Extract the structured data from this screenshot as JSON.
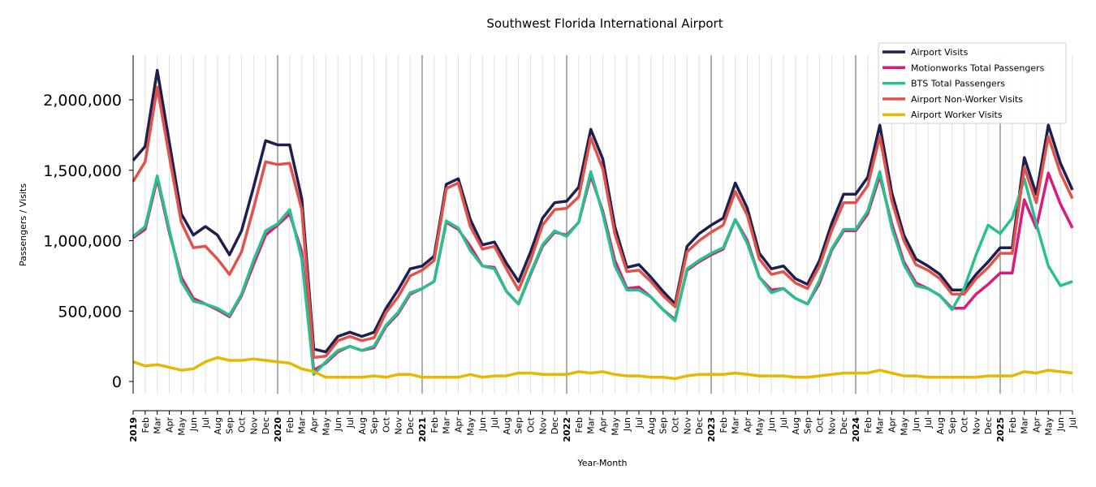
{
  "chart_data": {
    "type": "line",
    "title": "Southwest Florida International Airport",
    "xlabel": "Year-Month",
    "ylabel": "Passengers / Visits",
    "ylim": [
      -80000,
      2320000
    ],
    "y_ticks": [
      0,
      500000,
      1000000,
      1500000,
      2000000
    ],
    "y_tick_labels": [
      "0",
      "500,000",
      "1,000,000",
      "1,500,000",
      "2,000,000"
    ],
    "grid": "vertical monthly lines, darker at each January",
    "legend_position": "top-right",
    "x_tick_labels": [
      "2019",
      "Feb",
      "Mar",
      "Apr",
      "May",
      "Jun",
      "Jul",
      "Aug",
      "Sep",
      "Oct",
      "Nov",
      "Dec",
      "2020",
      "Feb",
      "Mar",
      "Apr",
      "May",
      "Jun",
      "Jul",
      "Aug",
      "Sep",
      "Oct",
      "Nov",
      "Dec",
      "2021",
      "Feb",
      "Mar",
      "Apr",
      "May",
      "Jun",
      "Jul",
      "Aug",
      "Sep",
      "Oct",
      "Nov",
      "Dec",
      "2022",
      "Feb",
      "Mar",
      "Apr",
      "May",
      "Jun",
      "Jul",
      "Aug",
      "Sep",
      "Oct",
      "Nov",
      "Dec",
      "2023",
      "Feb",
      "Mar",
      "Apr",
      "May",
      "Jun",
      "Jul",
      "Aug",
      "Sep",
      "Oct",
      "Nov",
      "Dec",
      "2024",
      "Feb",
      "Mar",
      "Apr",
      "May",
      "Jun",
      "Jul",
      "Aug",
      "Sep",
      "Oct",
      "Nov",
      "Dec",
      "2025",
      "Feb",
      "Mar",
      "Apr",
      "May",
      "Jun",
      "Jul"
    ],
    "series": [
      {
        "name": "Airport Visits",
        "color": "#1f1f4f",
        "values": [
          1570000,
          1670000,
          2210000,
          1700000,
          1190000,
          1040000,
          1100000,
          1040000,
          900000,
          1070000,
          1380000,
          1710000,
          1680000,
          1680000,
          1300000,
          230000,
          210000,
          320000,
          350000,
          320000,
          350000,
          520000,
          650000,
          800000,
          820000,
          890000,
          1400000,
          1440000,
          1150000,
          970000,
          990000,
          840000,
          710000,
          920000,
          1160000,
          1270000,
          1280000,
          1380000,
          1790000,
          1580000,
          1100000,
          810000,
          830000,
          740000,
          640000,
          550000,
          960000,
          1050000,
          1110000,
          1160000,
          1410000,
          1230000,
          910000,
          800000,
          820000,
          730000,
          690000,
          860000,
          1120000,
          1330000,
          1330000,
          1450000,
          1820000,
          1340000,
          1040000,
          870000,
          820000,
          760000,
          650000,
          650000,
          760000,
          850000,
          950000,
          950000,
          1590000,
          1330000,
          1820000,
          1550000,
          1360000
        ]
      },
      {
        "name": "Motionworks Total Passengers",
        "color": "#d81b7c",
        "values": [
          1020000,
          1080000,
          1440000,
          1060000,
          740000,
          590000,
          550000,
          510000,
          460000,
          610000,
          830000,
          1040000,
          1110000,
          1190000,
          920000,
          80000,
          130000,
          210000,
          250000,
          220000,
          240000,
          390000,
          480000,
          620000,
          660000,
          710000,
          1130000,
          1080000,
          960000,
          820000,
          810000,
          640000,
          550000,
          760000,
          960000,
          1060000,
          1040000,
          1130000,
          1460000,
          1210000,
          860000,
          660000,
          670000,
          600000,
          510000,
          440000,
          790000,
          850000,
          900000,
          940000,
          1150000,
          1000000,
          740000,
          650000,
          660000,
          590000,
          550000,
          700000,
          930000,
          1070000,
          1070000,
          1190000,
          1460000,
          1120000,
          850000,
          700000,
          660000,
          610000,
          520000,
          520000,
          620000,
          690000,
          770000,
          770000,
          1290000,
          1090000,
          1480000,
          1260000,
          1090000
        ]
      },
      {
        "name": "BTS Total Passengers",
        "color": "#27c08e",
        "values": [
          1030000,
          1100000,
          1460000,
          1080000,
          710000,
          570000,
          550000,
          520000,
          470000,
          620000,
          860000,
          1070000,
          1120000,
          1220000,
          870000,
          50000,
          140000,
          220000,
          250000,
          220000,
          250000,
          400000,
          490000,
          630000,
          660000,
          710000,
          1140000,
          1090000,
          930000,
          820000,
          800000,
          640000,
          550000,
          770000,
          970000,
          1070000,
          1030000,
          1130000,
          1490000,
          1190000,
          820000,
          650000,
          650000,
          600000,
          510000,
          430000,
          800000,
          860000,
          910000,
          950000,
          1150000,
          980000,
          740000,
          630000,
          660000,
          590000,
          550000,
          720000,
          940000,
          1080000,
          1080000,
          1210000,
          1490000,
          1090000,
          830000,
          680000,
          660000,
          610000,
          510000,
          660000,
          900000,
          1110000,
          1050000,
          1160000,
          1440000,
          1120000,
          820000,
          680000,
          710000
        ]
      },
      {
        "name": "Airport Non-Worker Visits",
        "color": "#e0524a",
        "values": [
          1420000,
          1560000,
          2090000,
          1600000,
          1130000,
          950000,
          960000,
          870000,
          760000,
          920000,
          1230000,
          1560000,
          1540000,
          1550000,
          1220000,
          170000,
          180000,
          290000,
          320000,
          290000,
          310000,
          490000,
          600000,
          750000,
          790000,
          860000,
          1370000,
          1410000,
          1100000,
          940000,
          960000,
          800000,
          650000,
          860000,
          1110000,
          1220000,
          1230000,
          1310000,
          1730000,
          1510000,
          1050000,
          780000,
          790000,
          710000,
          610000,
          530000,
          920000,
          1000000,
          1060000,
          1110000,
          1350000,
          1180000,
          870000,
          760000,
          780000,
          700000,
          660000,
          820000,
          1070000,
          1270000,
          1270000,
          1390000,
          1740000,
          1280000,
          1000000,
          830000,
          790000,
          730000,
          620000,
          620000,
          730000,
          810000,
          910000,
          910000,
          1520000,
          1270000,
          1740000,
          1480000,
          1300000
        ]
      },
      {
        "name": "Airport Worker Visits",
        "color": "#e6b800",
        "values": [
          140000,
          110000,
          120000,
          100000,
          80000,
          90000,
          140000,
          170000,
          150000,
          150000,
          160000,
          150000,
          140000,
          130000,
          90000,
          70000,
          30000,
          30000,
          30000,
          30000,
          40000,
          30000,
          50000,
          50000,
          30000,
          30000,
          30000,
          30000,
          50000,
          30000,
          40000,
          40000,
          60000,
          60000,
          50000,
          50000,
          50000,
          70000,
          60000,
          70000,
          50000,
          40000,
          40000,
          30000,
          30000,
          20000,
          40000,
          50000,
          50000,
          50000,
          60000,
          50000,
          40000,
          40000,
          40000,
          30000,
          30000,
          40000,
          50000,
          60000,
          60000,
          60000,
          80000,
          60000,
          40000,
          40000,
          30000,
          30000,
          30000,
          30000,
          30000,
          40000,
          40000,
          40000,
          70000,
          60000,
          80000,
          70000,
          60000
        ]
      }
    ]
  }
}
